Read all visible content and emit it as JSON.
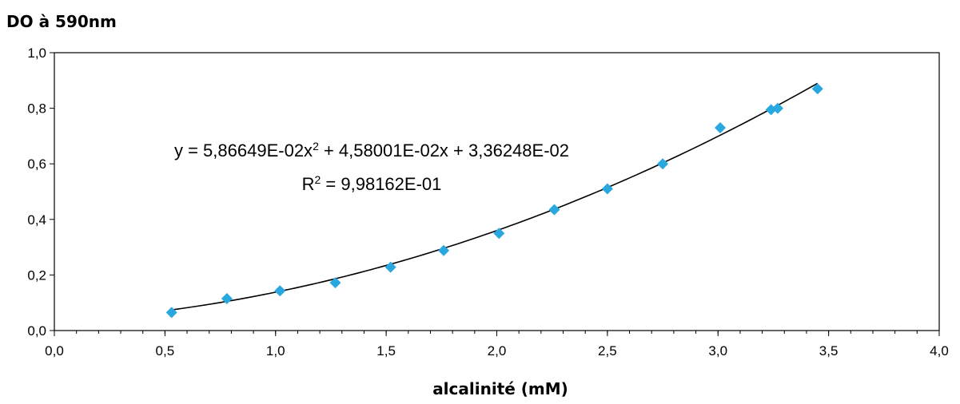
{
  "chart_data": {
    "type": "scatter",
    "ylabel": "DO à 590nm",
    "xlabel": "alcalinité (mM)",
    "xlim": [
      0.0,
      4.0
    ],
    "ylim": [
      0.0,
      1.0
    ],
    "xticks": [
      "0,0",
      "0,5",
      "1,0",
      "1,5",
      "2,0",
      "2,5",
      "3,0",
      "3,5",
      "4,0"
    ],
    "yticks": [
      "0,0",
      "0,2",
      "0,4",
      "0,6",
      "0,8",
      "1,0"
    ],
    "grid": false,
    "series": [
      {
        "marker_color": "#29A8E0",
        "points": [
          {
            "x": 0.53,
            "y": 0.065
          },
          {
            "x": 0.78,
            "y": 0.115
          },
          {
            "x": 1.02,
            "y": 0.143
          },
          {
            "x": 1.27,
            "y": 0.172
          },
          {
            "x": 1.52,
            "y": 0.228
          },
          {
            "x": 1.76,
            "y": 0.288
          },
          {
            "x": 2.01,
            "y": 0.35
          },
          {
            "x": 2.26,
            "y": 0.435
          },
          {
            "x": 2.5,
            "y": 0.51
          },
          {
            "x": 2.75,
            "y": 0.6
          },
          {
            "x": 3.01,
            "y": 0.73
          },
          {
            "x": 3.24,
            "y": 0.795
          },
          {
            "x": 3.27,
            "y": 0.8
          },
          {
            "x": 3.45,
            "y": 0.87
          }
        ]
      }
    ],
    "trendline": {
      "type": "polynomial",
      "coefficients": [
        0.0586649,
        0.0458001,
        0.0336248
      ],
      "x_range": [
        0.53,
        3.45
      ],
      "color": "#000000",
      "equation_text": {
        "prefix": "y = 5,86649E-02x",
        "sup": "2",
        "rest": " + 4,58001E-02x + 3,36248E-02"
      },
      "r2_text": {
        "prefix": "R",
        "sup": "2",
        "rest": " = 9,98162E-01"
      }
    }
  }
}
